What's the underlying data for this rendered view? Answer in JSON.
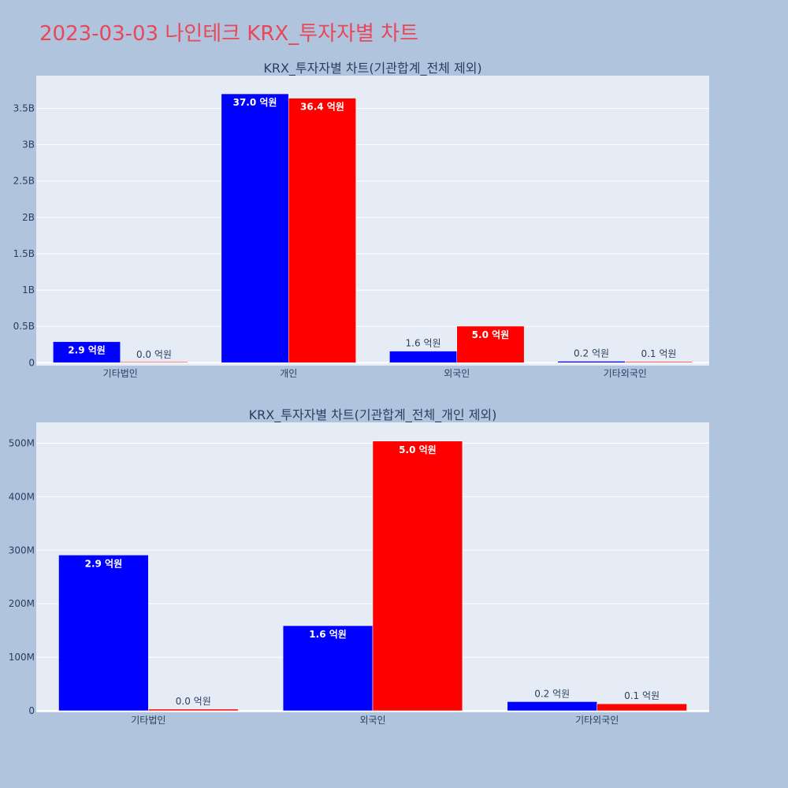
{
  "page": {
    "title": "2023-03-03 나인테크 KRX_투자자별 차트",
    "background": "#b0c4de",
    "title_color": "#e8475a"
  },
  "colors": {
    "plot_bg": "#e5ecf6",
    "grid": "#ffffff",
    "buy": "#0000ff",
    "sell": "#ff0000",
    "text": "#2a3f5f"
  },
  "chart_data": [
    {
      "type": "bar",
      "title": "KRX_투자자별 차트(기관합계_전체 제외)",
      "categories": [
        "기타법인",
        "개인",
        "외국인",
        "기타외국인"
      ],
      "series": [
        {
          "color": "#0000ff",
          "values": [
            290000000,
            3700000000,
            160000000,
            20000000
          ],
          "labels": [
            "2.9 억원",
            "37.0 억원",
            "1.6 억원",
            "0.2 억원"
          ],
          "label_inside": [
            true,
            true,
            false,
            false
          ]
        },
        {
          "color": "#ff0000",
          "values": [
            3000000,
            3640000000,
            503000000,
            13000000
          ],
          "labels": [
            "0.0 억원",
            "36.4 억원",
            "5.0 억원",
            "0.1 억원"
          ],
          "label_inside": [
            false,
            true,
            true,
            false
          ]
        }
      ],
      "ylim": [
        -40000000,
        3950000000
      ],
      "yticks": [
        0,
        500000000,
        1000000000,
        1500000000,
        2000000000,
        2500000000,
        3000000000,
        3500000000
      ],
      "ytick_labels": [
        "0",
        "0.5B",
        "1B",
        "1.5B",
        "2B",
        "2.5B",
        "3B",
        "3.5B"
      ],
      "grid": true,
      "legend": "none"
    },
    {
      "type": "bar",
      "title": "KRX_투자자별 차트(기관합계_전체_개인 제외)",
      "categories": [
        "기타법인",
        "외국인",
        "기타외국인"
      ],
      "series": [
        {
          "color": "#0000ff",
          "values": [
            291000000,
            159000000,
            17000000
          ],
          "labels": [
            "2.9 억원",
            "1.6 억원",
            "0.2 억원"
          ],
          "label_inside": [
            true,
            true,
            false
          ]
        },
        {
          "color": "#ff0000",
          "values": [
            3000000,
            504000000,
            13000000
          ],
          "labels": [
            "0.0 억원",
            "5.0 억원",
            "0.1 억원"
          ],
          "label_inside": [
            false,
            true,
            false
          ]
        }
      ],
      "ylim": [
        -3000000,
        539000000
      ],
      "yticks": [
        0,
        100000000,
        200000000,
        300000000,
        400000000,
        500000000
      ],
      "ytick_labels": [
        "0",
        "100M",
        "200M",
        "300M",
        "400M",
        "500M"
      ],
      "grid": true,
      "legend": "none"
    }
  ]
}
